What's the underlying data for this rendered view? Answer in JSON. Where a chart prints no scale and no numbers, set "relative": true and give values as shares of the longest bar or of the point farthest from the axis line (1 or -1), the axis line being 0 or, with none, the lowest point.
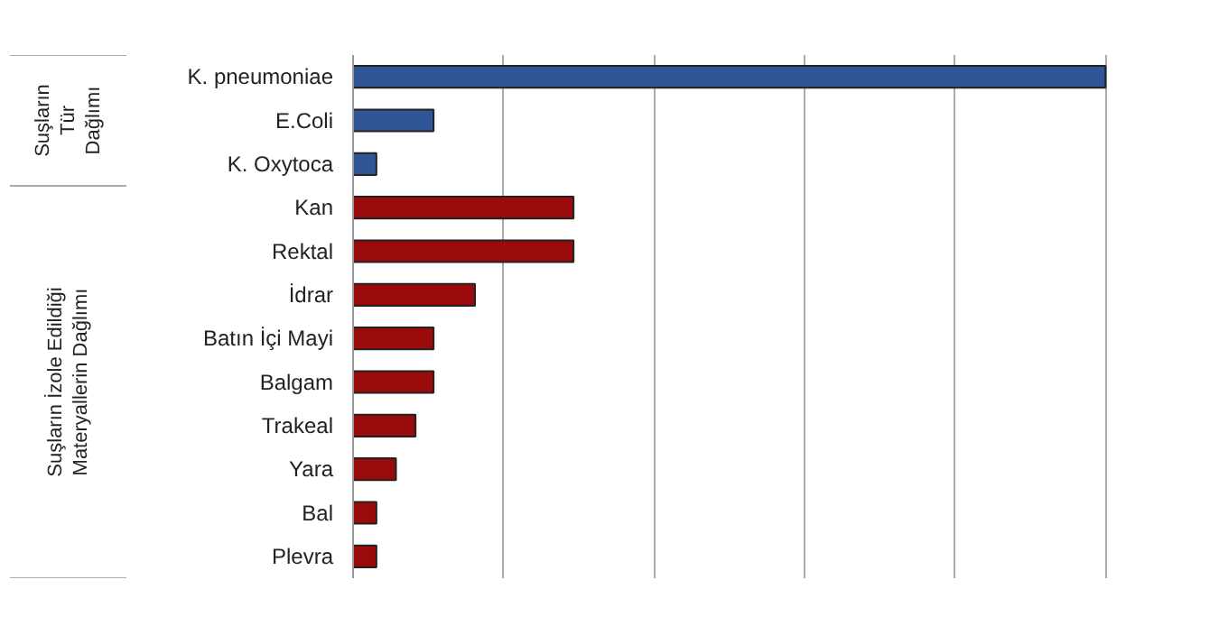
{
  "chart_data": {
    "type": "bar",
    "orientation": "horizontal",
    "relative": true,
    "grid": "x",
    "categories": [
      "K. pneumoniae",
      "E.Coli",
      "K. Oxytoca",
      "Kan",
      "Rektal",
      "İdrar",
      "Batın İçi Mayi",
      "Balgam",
      "Trakeal",
      "Yara",
      "Bal",
      "Plevra"
    ],
    "values": [
      1,
      0.107,
      0.031,
      0.293,
      0.293,
      0.162,
      0.107,
      0.107,
      0.083,
      0.057,
      0.031,
      0.031
    ],
    "colors": [
      "#2f5597",
      "#2f5597",
      "#2f5597",
      "#9b0a0a",
      "#9b0a0a",
      "#9b0a0a",
      "#9b0a0a",
      "#9b0a0a",
      "#9b0a0a",
      "#9b0a0a",
      "#9b0a0a",
      "#9b0a0a"
    ],
    "annotations": [
      "Suşların\nTür\nDağlımı",
      "Suşların İzole Edildiği\nMateryallerin Dağlımı"
    ]
  }
}
